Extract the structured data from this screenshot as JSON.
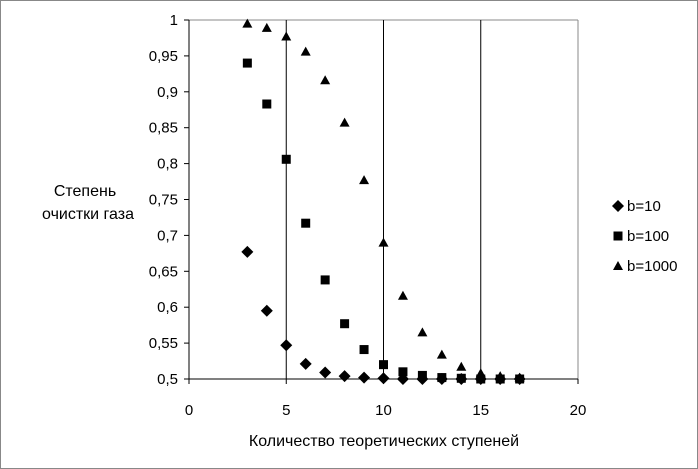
{
  "chart_data": {
    "type": "scatter",
    "title": "",
    "xlabel": "Количество теоретических ступеней",
    "ylabel_lines": [
      "Степень",
      "очистки газа"
    ],
    "xlim": [
      0,
      20
    ],
    "ylim": [
      0.5,
      1
    ],
    "x_ticks": [
      0,
      5,
      10,
      15,
      20
    ],
    "y_ticks": [
      0.5,
      0.55,
      0.6,
      0.65,
      0.7,
      0.75,
      0.8,
      0.85,
      0.9,
      0.95,
      1
    ],
    "x_tick_labels": [
      "0",
      "5",
      "10",
      "15",
      "20"
    ],
    "y_tick_labels": [
      "0,5",
      "0,55",
      "0,6",
      "0,65",
      "0,7",
      "0,75",
      "0,8",
      "0,85",
      "0,9",
      "0,95",
      "1"
    ],
    "grid": "vertical",
    "legend_position": "right",
    "series": [
      {
        "name": "b=10",
        "marker": "diamond",
        "color": "#000000",
        "x": [
          3,
          4,
          5,
          6,
          7,
          8,
          9,
          10,
          11,
          12,
          13,
          14,
          15,
          16,
          17
        ],
        "y": [
          0.677,
          0.595,
          0.547,
          0.521,
          0.509,
          0.504,
          0.502,
          0.501,
          0.5,
          0.5,
          0.5,
          0.5,
          0.5,
          0.5,
          0.5
        ]
      },
      {
        "name": "b=100",
        "marker": "square",
        "color": "#000000",
        "x": [
          3,
          4,
          5,
          6,
          7,
          8,
          9,
          10,
          11,
          12,
          13,
          14,
          15,
          16,
          17
        ],
        "y": [
          0.94,
          0.883,
          0.806,
          0.717,
          0.638,
          0.577,
          0.541,
          0.52,
          0.51,
          0.505,
          0.502,
          0.501,
          0.5,
          0.5,
          0.5
        ]
      },
      {
        "name": "b=1000",
        "marker": "triangle",
        "color": "#000000",
        "x": [
          3,
          4,
          5,
          6,
          7,
          8,
          9,
          10,
          11,
          12,
          13,
          14,
          15,
          16,
          17
        ],
        "y": [
          0.995,
          0.989,
          0.977,
          0.956,
          0.916,
          0.857,
          0.777,
          0.69,
          0.616,
          0.565,
          0.534,
          0.517,
          0.508,
          0.504,
          0.502
        ]
      }
    ]
  }
}
